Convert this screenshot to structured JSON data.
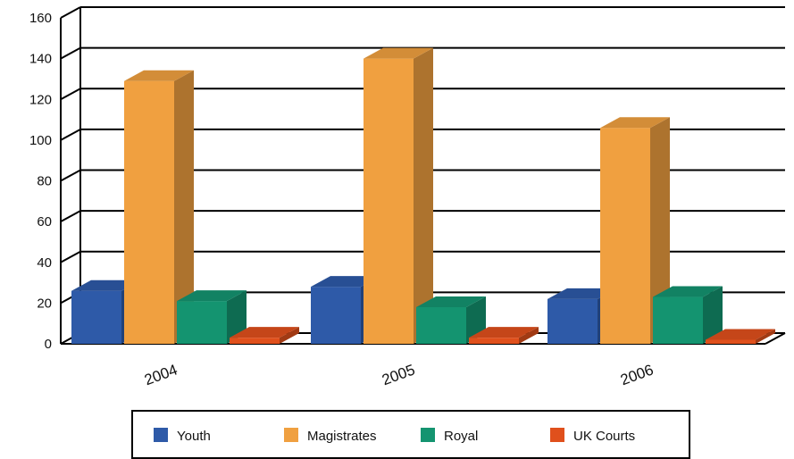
{
  "chart_data": {
    "type": "bar",
    "title": "",
    "xlabel": "",
    "ylabel": "",
    "categories": [
      "2004",
      "2005",
      "2006"
    ],
    "ylim": [
      0,
      160
    ],
    "yticks": [
      "0",
      "20",
      "40",
      "60",
      "80",
      "100",
      "120",
      "140",
      "160"
    ],
    "grid": true,
    "legend_position": "bottom",
    "series": [
      {
        "name": "Youth",
        "color": "#2e5aa8",
        "values": [
          26,
          28,
          22
        ]
      },
      {
        "name": "Magistrates",
        "color": "#f0a040",
        "values": [
          129,
          140,
          106
        ]
      },
      {
        "name": "Royal",
        "color": "#149470",
        "values": [
          21,
          18,
          23
        ]
      },
      {
        "name": "UK Courts",
        "color": "#e0501c",
        "values": [
          3,
          3,
          2
        ]
      }
    ]
  }
}
